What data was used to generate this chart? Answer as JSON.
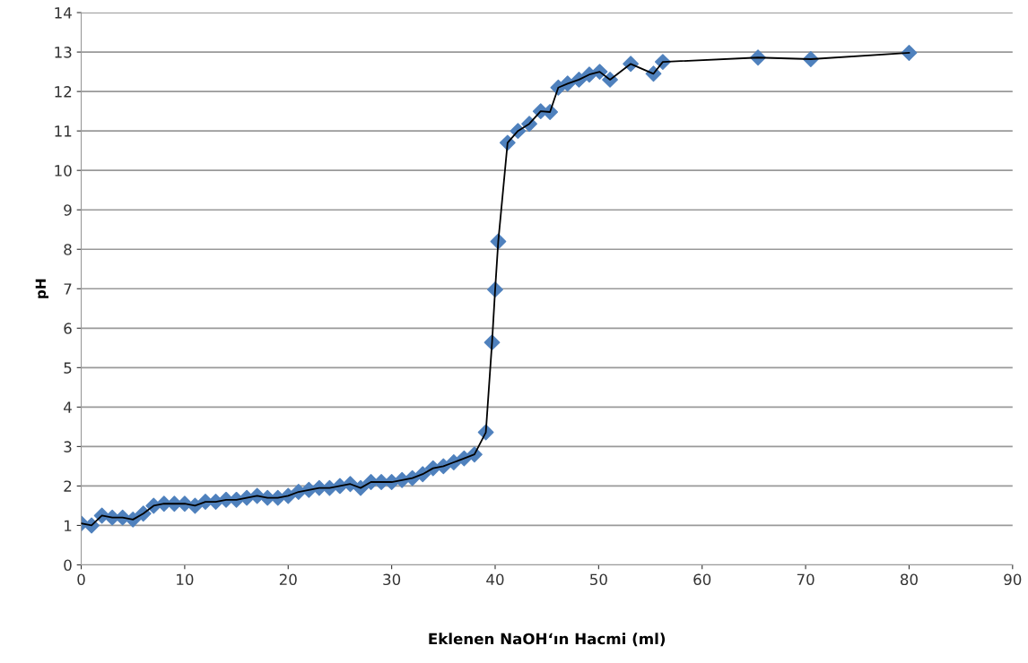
{
  "chart_data": {
    "type": "line",
    "xlabel": "Eklenen NaOH‘ın Hacmi (ml)",
    "ylabel": "pH",
    "x": [
      0,
      1,
      2,
      3,
      4,
      5,
      6,
      7,
      8,
      9,
      10,
      11,
      12,
      13,
      14,
      15,
      16,
      17,
      18,
      19,
      20,
      21,
      22,
      23,
      24,
      25,
      26,
      27,
      28,
      29,
      30,
      31,
      32,
      33,
      34,
      35,
      36,
      37,
      38,
      39.1,
      39.7,
      40.0,
      40.3,
      41.2,
      42.2,
      43.3,
      44.4,
      45.3,
      46.1,
      47.0,
      48.1,
      49.1,
      50.1,
      51.1,
      53.1,
      55.3,
      56.2,
      65.4,
      70.5,
      80.0
    ],
    "series": [
      {
        "type": "scatter",
        "color": "#4f81bd",
        "marker": "diamond",
        "values": [
          1.05,
          1.0,
          1.25,
          1.2,
          1.2,
          1.15,
          1.3,
          1.5,
          1.55,
          1.55,
          1.55,
          1.5,
          1.6,
          1.6,
          1.65,
          1.65,
          1.7,
          1.75,
          1.7,
          1.7,
          1.75,
          1.85,
          1.9,
          1.95,
          1.95,
          2.0,
          2.05,
          1.95,
          2.1,
          2.1,
          2.1,
          2.15,
          2.2,
          2.3,
          2.45,
          2.5,
          2.6,
          2.7,
          2.8,
          3.36,
          5.64,
          6.98,
          8.2,
          10.7,
          11.0,
          11.18,
          11.5,
          11.48,
          12.1,
          12.2,
          12.3,
          12.43,
          12.5,
          12.3,
          12.7,
          12.45,
          12.75,
          12.86,
          12.82,
          12.98
        ]
      },
      {
        "color": "#000000",
        "marker": "none",
        "line_style": "solid",
        "values": [
          1.05,
          1.0,
          1.25,
          1.2,
          1.2,
          1.15,
          1.3,
          1.5,
          1.55,
          1.55,
          1.55,
          1.5,
          1.6,
          1.6,
          1.65,
          1.65,
          1.7,
          1.75,
          1.7,
          1.7,
          1.75,
          1.85,
          1.9,
          1.95,
          1.95,
          2.0,
          2.05,
          1.95,
          2.1,
          2.1,
          2.1,
          2.15,
          2.2,
          2.3,
          2.45,
          2.5,
          2.6,
          2.7,
          2.8,
          3.36,
          5.64,
          6.98,
          8.2,
          10.7,
          11.0,
          11.18,
          11.5,
          11.48,
          12.1,
          12.2,
          12.3,
          12.43,
          12.5,
          12.3,
          12.7,
          12.45,
          12.75,
          12.86,
          12.82,
          12.98
        ]
      }
    ],
    "xlim": [
      0,
      90
    ],
    "xticks": [
      0,
      10,
      20,
      30,
      40,
      50,
      60,
      70,
      80,
      90
    ],
    "ylim": [
      0,
      14
    ],
    "yticks": [
      0,
      1,
      2,
      3,
      4,
      5,
      6,
      7,
      8,
      9,
      10,
      11,
      12,
      13,
      14
    ],
    "grid": "y",
    "legend": false
  }
}
